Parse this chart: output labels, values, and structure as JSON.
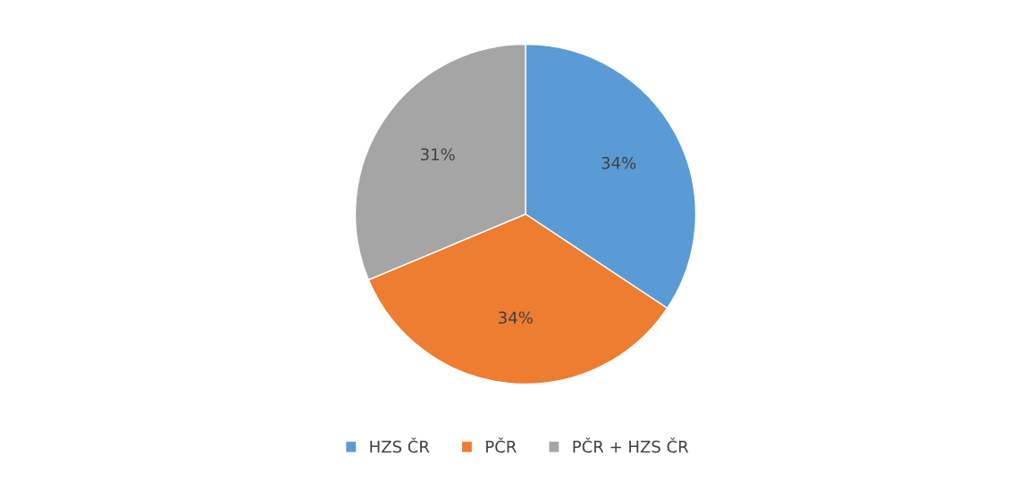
{
  "chart_data": {
    "type": "pie",
    "categories": [
      "HZS ČR",
      "PČR",
      "PČR + HZS ČR"
    ],
    "values": [
      34,
      34,
      31
    ],
    "colors": [
      "#5b9bd5",
      "#ed7d31",
      "#a5a5a5"
    ],
    "value_labels": [
      "34%",
      "34%",
      "31%"
    ],
    "legend": "bottom"
  }
}
